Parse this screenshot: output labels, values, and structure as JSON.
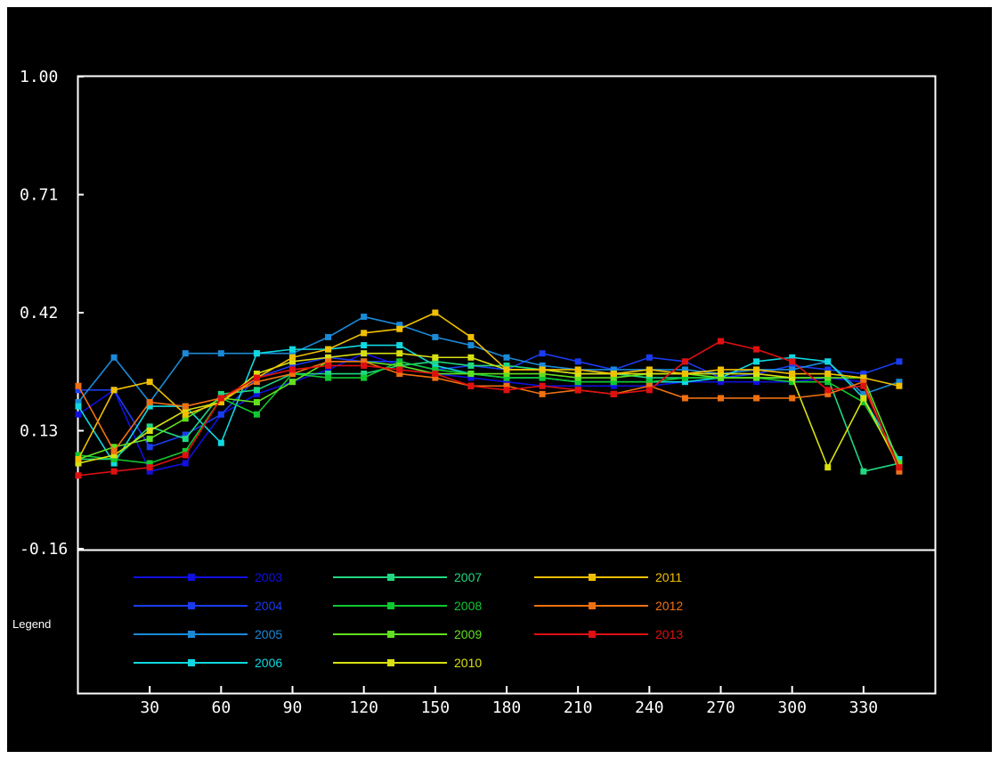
{
  "chart_data": {
    "type": "line",
    "title": "",
    "xlabel": "",
    "ylabel": "",
    "x": [
      0,
      15,
      30,
      45,
      60,
      75,
      90,
      105,
      120,
      135,
      150,
      165,
      180,
      195,
      210,
      225,
      240,
      255,
      270,
      285,
      300,
      315,
      330,
      345
    ],
    "x_ticks": [
      30,
      60,
      90,
      120,
      150,
      180,
      210,
      240,
      270,
      300,
      330
    ],
    "y_ticks": [
      "1.00",
      "0.71",
      "0.42",
      "0.13",
      "-0.16"
    ],
    "xlim": [
      0,
      360
    ],
    "ylim": [
      -0.16,
      1.0
    ],
    "grid": false,
    "legend_title": "Legend",
    "legend_position": "bottom",
    "series": [
      {
        "name": "2003",
        "color": "#1010e0",
        "values": [
          0.17,
          0.23,
          0.03,
          0.05,
          0.17,
          0.22,
          0.25,
          0.28,
          0.32,
          0.29,
          0.27,
          0.26,
          0.25,
          0.24,
          0.24,
          0.24,
          0.24,
          0.25,
          0.25,
          0.25,
          0.25,
          0.26,
          0.25,
          0.03
        ]
      },
      {
        "name": "2004",
        "color": "#1a3cf0",
        "values": [
          0.23,
          0.23,
          0.09,
          0.12,
          0.17,
          0.26,
          0.29,
          0.31,
          0.3,
          0.3,
          0.28,
          0.29,
          0.28,
          0.32,
          0.3,
          0.28,
          0.31,
          0.3,
          0.26,
          0.27,
          0.29,
          0.28,
          0.27,
          0.3
        ]
      },
      {
        "name": "2005",
        "color": "#1a8ad8",
        "values": [
          0.2,
          0.31,
          0.2,
          0.32,
          0.32,
          0.32,
          0.32,
          0.36,
          0.41,
          0.39,
          0.36,
          0.34,
          0.31,
          0.29,
          0.28,
          0.28,
          0.28,
          0.28,
          0.27,
          0.28,
          0.28,
          0.3,
          0.22,
          0.25
        ]
      },
      {
        "name": "2006",
        "color": "#10d8e0",
        "values": [
          0.19,
          0.05,
          0.19,
          0.19,
          0.1,
          0.32,
          0.33,
          0.33,
          0.34,
          0.34,
          0.29,
          0.27,
          0.26,
          0.26,
          0.25,
          0.25,
          0.25,
          0.25,
          0.26,
          0.3,
          0.31,
          0.3,
          0.21,
          0.06
        ]
      },
      {
        "name": "2007",
        "color": "#20d880",
        "values": [
          0.06,
          0.06,
          0.14,
          0.11,
          0.22,
          0.23,
          0.27,
          0.27,
          0.27,
          0.29,
          0.3,
          0.29,
          0.29,
          0.28,
          0.27,
          0.27,
          0.26,
          0.26,
          0.26,
          0.26,
          0.26,
          0.26,
          0.03,
          0.05
        ]
      },
      {
        "name": "2008",
        "color": "#10c830",
        "values": [
          0.07,
          0.06,
          0.05,
          0.08,
          0.21,
          0.17,
          0.27,
          0.26,
          0.26,
          0.3,
          0.28,
          0.27,
          0.26,
          0.26,
          0.25,
          0.25,
          0.25,
          0.26,
          0.26,
          0.26,
          0.25,
          0.25,
          0.2,
          0.05
        ]
      },
      {
        "name": "2009",
        "color": "#60e020",
        "values": [
          0.06,
          0.09,
          0.11,
          0.16,
          0.21,
          0.2,
          0.25,
          0.3,
          0.3,
          0.29,
          0.27,
          0.27,
          0.27,
          0.27,
          0.26,
          0.26,
          0.27,
          0.27,
          0.26,
          0.26,
          0.26,
          0.26,
          0.26,
          0.05
        ]
      },
      {
        "name": "2010",
        "color": "#d8e010",
        "values": [
          0.05,
          0.07,
          0.13,
          0.18,
          0.2,
          0.27,
          0.3,
          0.31,
          0.32,
          0.32,
          0.31,
          0.31,
          0.28,
          0.28,
          0.27,
          0.27,
          0.27,
          0.27,
          0.27,
          0.27,
          0.26,
          0.04,
          0.21,
          0.04
        ]
      },
      {
        "name": "2011",
        "color": "#f0c000",
        "values": [
          0.06,
          0.23,
          0.25,
          0.17,
          0.2,
          0.26,
          0.31,
          0.33,
          0.37,
          0.38,
          0.42,
          0.36,
          0.28,
          0.28,
          0.28,
          0.27,
          0.28,
          0.27,
          0.28,
          0.28,
          0.27,
          0.27,
          0.26,
          0.24
        ]
      },
      {
        "name": "2012",
        "color": "#f07010",
        "values": [
          0.24,
          0.08,
          0.2,
          0.19,
          0.21,
          0.25,
          0.27,
          0.3,
          0.3,
          0.27,
          0.26,
          0.24,
          0.24,
          0.22,
          0.23,
          0.22,
          0.24,
          0.21,
          0.21,
          0.21,
          0.21,
          0.22,
          0.25,
          0.03
        ]
      },
      {
        "name": "2013",
        "color": "#e01010",
        "values": [
          0.02,
          0.03,
          0.04,
          0.07,
          0.21,
          0.26,
          0.28,
          0.29,
          0.29,
          0.28,
          0.27,
          0.24,
          0.23,
          0.24,
          0.23,
          0.22,
          0.23,
          0.3,
          0.35,
          0.33,
          0.3,
          0.23,
          0.24,
          0.04
        ]
      }
    ]
  }
}
